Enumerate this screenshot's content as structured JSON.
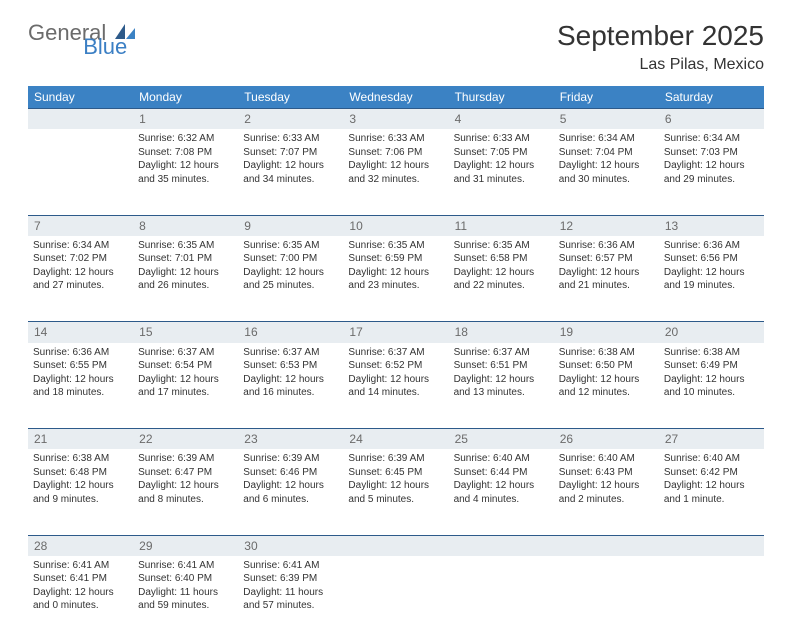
{
  "brand": {
    "part1": "General",
    "part2": "Blue"
  },
  "title": "September 2025",
  "location": "Las Pilas, Mexico",
  "colors": {
    "header_bg": "#3b82c4",
    "header_text": "#ffffff",
    "daynum_bg": "#e8edf1",
    "daynum_text": "#6b6b6b",
    "border": "#2d5a8a",
    "body_text": "#333333",
    "brand_gray": "#6b6b6b",
    "brand_blue": "#3b7fc4"
  },
  "day_headers": [
    "Sunday",
    "Monday",
    "Tuesday",
    "Wednesday",
    "Thursday",
    "Friday",
    "Saturday"
  ],
  "weeks": [
    [
      {
        "n": "",
        "lines": []
      },
      {
        "n": "1",
        "lines": [
          "Sunrise: 6:32 AM",
          "Sunset: 7:08 PM",
          "Daylight: 12 hours and 35 minutes."
        ]
      },
      {
        "n": "2",
        "lines": [
          "Sunrise: 6:33 AM",
          "Sunset: 7:07 PM",
          "Daylight: 12 hours and 34 minutes."
        ]
      },
      {
        "n": "3",
        "lines": [
          "Sunrise: 6:33 AM",
          "Sunset: 7:06 PM",
          "Daylight: 12 hours and 32 minutes."
        ]
      },
      {
        "n": "4",
        "lines": [
          "Sunrise: 6:33 AM",
          "Sunset: 7:05 PM",
          "Daylight: 12 hours and 31 minutes."
        ]
      },
      {
        "n": "5",
        "lines": [
          "Sunrise: 6:34 AM",
          "Sunset: 7:04 PM",
          "Daylight: 12 hours and 30 minutes."
        ]
      },
      {
        "n": "6",
        "lines": [
          "Sunrise: 6:34 AM",
          "Sunset: 7:03 PM",
          "Daylight: 12 hours and 29 minutes."
        ]
      }
    ],
    [
      {
        "n": "7",
        "lines": [
          "Sunrise: 6:34 AM",
          "Sunset: 7:02 PM",
          "Daylight: 12 hours and 27 minutes."
        ]
      },
      {
        "n": "8",
        "lines": [
          "Sunrise: 6:35 AM",
          "Sunset: 7:01 PM",
          "Daylight: 12 hours and 26 minutes."
        ]
      },
      {
        "n": "9",
        "lines": [
          "Sunrise: 6:35 AM",
          "Sunset: 7:00 PM",
          "Daylight: 12 hours and 25 minutes."
        ]
      },
      {
        "n": "10",
        "lines": [
          "Sunrise: 6:35 AM",
          "Sunset: 6:59 PM",
          "Daylight: 12 hours and 23 minutes."
        ]
      },
      {
        "n": "11",
        "lines": [
          "Sunrise: 6:35 AM",
          "Sunset: 6:58 PM",
          "Daylight: 12 hours and 22 minutes."
        ]
      },
      {
        "n": "12",
        "lines": [
          "Sunrise: 6:36 AM",
          "Sunset: 6:57 PM",
          "Daylight: 12 hours and 21 minutes."
        ]
      },
      {
        "n": "13",
        "lines": [
          "Sunrise: 6:36 AM",
          "Sunset: 6:56 PM",
          "Daylight: 12 hours and 19 minutes."
        ]
      }
    ],
    [
      {
        "n": "14",
        "lines": [
          "Sunrise: 6:36 AM",
          "Sunset: 6:55 PM",
          "Daylight: 12 hours and 18 minutes."
        ]
      },
      {
        "n": "15",
        "lines": [
          "Sunrise: 6:37 AM",
          "Sunset: 6:54 PM",
          "Daylight: 12 hours and 17 minutes."
        ]
      },
      {
        "n": "16",
        "lines": [
          "Sunrise: 6:37 AM",
          "Sunset: 6:53 PM",
          "Daylight: 12 hours and 16 minutes."
        ]
      },
      {
        "n": "17",
        "lines": [
          "Sunrise: 6:37 AM",
          "Sunset: 6:52 PM",
          "Daylight: 12 hours and 14 minutes."
        ]
      },
      {
        "n": "18",
        "lines": [
          "Sunrise: 6:37 AM",
          "Sunset: 6:51 PM",
          "Daylight: 12 hours and 13 minutes."
        ]
      },
      {
        "n": "19",
        "lines": [
          "Sunrise: 6:38 AM",
          "Sunset: 6:50 PM",
          "Daylight: 12 hours and 12 minutes."
        ]
      },
      {
        "n": "20",
        "lines": [
          "Sunrise: 6:38 AM",
          "Sunset: 6:49 PM",
          "Daylight: 12 hours and 10 minutes."
        ]
      }
    ],
    [
      {
        "n": "21",
        "lines": [
          "Sunrise: 6:38 AM",
          "Sunset: 6:48 PM",
          "Daylight: 12 hours and 9 minutes."
        ]
      },
      {
        "n": "22",
        "lines": [
          "Sunrise: 6:39 AM",
          "Sunset: 6:47 PM",
          "Daylight: 12 hours and 8 minutes."
        ]
      },
      {
        "n": "23",
        "lines": [
          "Sunrise: 6:39 AM",
          "Sunset: 6:46 PM",
          "Daylight: 12 hours and 6 minutes."
        ]
      },
      {
        "n": "24",
        "lines": [
          "Sunrise: 6:39 AM",
          "Sunset: 6:45 PM",
          "Daylight: 12 hours and 5 minutes."
        ]
      },
      {
        "n": "25",
        "lines": [
          "Sunrise: 6:40 AM",
          "Sunset: 6:44 PM",
          "Daylight: 12 hours and 4 minutes."
        ]
      },
      {
        "n": "26",
        "lines": [
          "Sunrise: 6:40 AM",
          "Sunset: 6:43 PM",
          "Daylight: 12 hours and 2 minutes."
        ]
      },
      {
        "n": "27",
        "lines": [
          "Sunrise: 6:40 AM",
          "Sunset: 6:42 PM",
          "Daylight: 12 hours and 1 minute."
        ]
      }
    ],
    [
      {
        "n": "28",
        "lines": [
          "Sunrise: 6:41 AM",
          "Sunset: 6:41 PM",
          "Daylight: 12 hours and 0 minutes."
        ]
      },
      {
        "n": "29",
        "lines": [
          "Sunrise: 6:41 AM",
          "Sunset: 6:40 PM",
          "Daylight: 11 hours and 59 minutes."
        ]
      },
      {
        "n": "30",
        "lines": [
          "Sunrise: 6:41 AM",
          "Sunset: 6:39 PM",
          "Daylight: 11 hours and 57 minutes."
        ]
      },
      {
        "n": "",
        "lines": []
      },
      {
        "n": "",
        "lines": []
      },
      {
        "n": "",
        "lines": []
      },
      {
        "n": "",
        "lines": []
      }
    ]
  ]
}
